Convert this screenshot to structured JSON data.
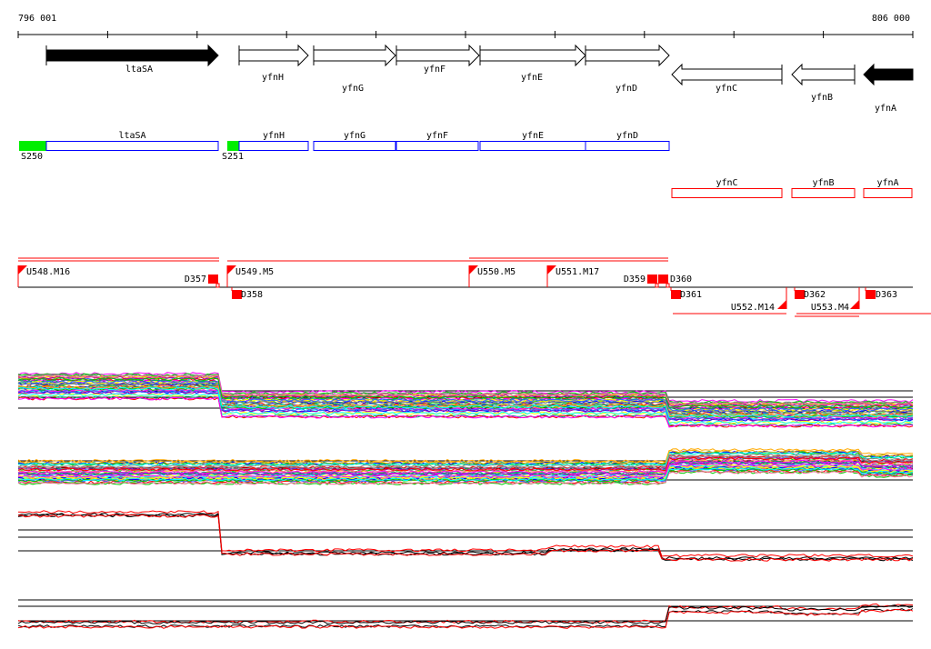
{
  "scale": {
    "start_label": "796 001",
    "end_label": "806 000"
  },
  "genes": [
    {
      "name": "ltaSA",
      "strand": "+",
      "filled": true
    },
    {
      "name": "yfnH",
      "strand": "+",
      "filled": false
    },
    {
      "name": "yfnG",
      "strand": "+",
      "filled": false
    },
    {
      "name": "yfnF",
      "strand": "+",
      "filled": false
    },
    {
      "name": "yfnE",
      "strand": "+",
      "filled": false
    },
    {
      "name": "yfnD",
      "strand": "+",
      "filled": false
    },
    {
      "name": "yfnC",
      "strand": "-",
      "filled": false
    },
    {
      "name": "yfnB",
      "strand": "-",
      "filled": false
    },
    {
      "name": "yfnA",
      "strand": "-",
      "filled": true
    }
  ],
  "forward_boxes": [
    "ltaSA",
    "yfnH",
    "yfnG",
    "yfnF",
    "yfnE",
    "yfnD"
  ],
  "reverse_boxes": [
    "yfnC",
    "yfnB",
    "yfnA"
  ],
  "promoters": [
    "S250",
    "S251"
  ],
  "units_upper": [
    "U548.M16",
    "U549.M5",
    "U550.M5",
    "U551.M17"
  ],
  "units_lower": [
    "U552.M14",
    "U553.M4"
  ],
  "terminators_upper": [
    "D357",
    "D359",
    "D360"
  ],
  "terminators_lower": [
    "D358",
    "D361",
    "D362",
    "D363"
  ],
  "colors": {
    "forward": "#0000ff",
    "reverse": "#ff0000",
    "promoter": "#00ee00",
    "unit": "#ff0000"
  }
}
